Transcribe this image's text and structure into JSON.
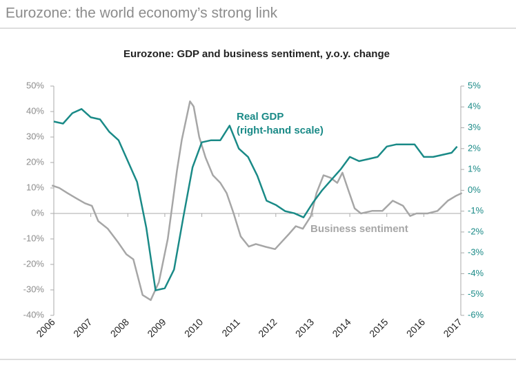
{
  "header": "Eurozone: the world economy’s strong link",
  "chart_data": {
    "type": "line",
    "title": "Eurozone: GDP and business sentiment, y.o.y. change",
    "annotations": [
      "Real GDP",
      "(right-hand scale)",
      "Business sentiment"
    ],
    "xlim": [
      2006,
      2017
    ],
    "xticks": [
      2006,
      2007,
      2008,
      2009,
      2010,
      2011,
      2012,
      2013,
      2014,
      2015,
      2016,
      2017
    ],
    "ylim": [
      -40,
      50
    ],
    "yticks": [
      {
        "value": -40,
        "label": "-40%"
      },
      {
        "value": -30,
        "label": "-30%"
      },
      {
        "value": -20,
        "label": "-20%"
      },
      {
        "value": -10,
        "label": "-10%"
      },
      {
        "value": 0,
        "label": "0%"
      },
      {
        "value": 10,
        "label": "10%"
      },
      {
        "value": 20,
        "label": "20%"
      },
      {
        "value": 30,
        "label": "30%"
      },
      {
        "value": 40,
        "label": "40%"
      },
      {
        "value": 50,
        "label": "50%"
      }
    ],
    "y2lim": [
      -6,
      5
    ],
    "y2ticks": [
      {
        "value": -6,
        "label": "-6%"
      },
      {
        "value": -5,
        "label": "-5%"
      },
      {
        "value": -4,
        "label": "-4%"
      },
      {
        "value": -3,
        "label": "-3%"
      },
      {
        "value": -2,
        "label": "-2%"
      },
      {
        "value": -1,
        "label": "-1%"
      },
      {
        "value": 0,
        "label": "0%"
      },
      {
        "value": 1,
        "label": "1%"
      },
      {
        "value": 2,
        "label": "2%"
      },
      {
        "value": 3,
        "label": "3%"
      },
      {
        "value": 4,
        "label": "4%"
      },
      {
        "value": 5,
        "label": "5%"
      }
    ],
    "series": [
      {
        "name": "Business sentiment",
        "color": "#a6a6a6",
        "x": [
          2005.95,
          2006.15,
          2006.37,
          2006.6,
          2006.84,
          2007.03,
          2007.2,
          2007.46,
          2007.72,
          2007.96,
          2008.15,
          2008.4,
          2008.62,
          2008.84,
          2009.08,
          2009.33,
          2009.46,
          2009.68,
          2009.78,
          2009.93,
          2010.1,
          2010.3,
          2010.5,
          2010.67,
          2010.86,
          2011.05,
          2011.27,
          2011.46,
          2011.7,
          2011.98,
          2012.17,
          2012.36,
          2012.54,
          2012.73,
          2012.95,
          2013.1,
          2013.29,
          2013.48,
          2013.66,
          2013.8,
          2013.94,
          2014.13,
          2014.3,
          2014.6,
          2014.88,
          2015.16,
          2015.44,
          2015.63,
          2015.8,
          2016.1,
          2016.37,
          2016.65,
          2016.88,
          2017.03
        ],
        "values": [
          11,
          10,
          8,
          6,
          4,
          3,
          -3,
          -6,
          -11,
          -16,
          -18,
          -32,
          -34,
          -27,
          -10,
          17,
          29,
          44,
          42,
          30,
          22,
          15,
          12,
          8,
          0,
          -9,
          -13,
          -12,
          -13,
          -14,
          -11,
          -8,
          -5,
          -6,
          -1,
          8,
          15,
          14,
          12,
          16,
          10,
          2,
          0,
          1,
          1,
          5,
          3,
          -1,
          0,
          0,
          1,
          5,
          7,
          8
        ]
      },
      {
        "name": "Real GDP",
        "color": "#1a8a87",
        "axis": "y2",
        "x": [
          2006,
          2006.25,
          2006.5,
          2006.75,
          2007,
          2007.25,
          2007.5,
          2007.75,
          2008,
          2008.25,
          2008.5,
          2008.75,
          2009,
          2009.25,
          2009.5,
          2009.75,
          2010,
          2010.25,
          2010.5,
          2010.75,
          2011,
          2011.25,
          2011.5,
          2011.75,
          2012,
          2012.25,
          2012.5,
          2012.75,
          2013,
          2013.25,
          2013.5,
          2013.75,
          2014,
          2014.25,
          2014.5,
          2014.75,
          2015,
          2015.25,
          2015.5,
          2015.75,
          2016,
          2016.25,
          2016.5,
          2016.75,
          2016.9
        ],
        "values": [
          3.3,
          3.2,
          3.7,
          3.9,
          3.5,
          3.4,
          2.8,
          2.4,
          1.4,
          0.4,
          -1.8,
          -4.8,
          -4.7,
          -3.8,
          -1.3,
          1.1,
          2.3,
          2.4,
          2.4,
          3.1,
          2.0,
          1.6,
          0.7,
          -0.5,
          -0.7,
          -1.0,
          -1.1,
          -1.3,
          -0.6,
          0.0,
          0.5,
          1.0,
          1.6,
          1.4,
          1.5,
          1.6,
          2.1,
          2.2,
          2.2,
          2.2,
          1.6,
          1.6,
          1.7,
          1.8,
          2.1
        ]
      }
    ]
  }
}
